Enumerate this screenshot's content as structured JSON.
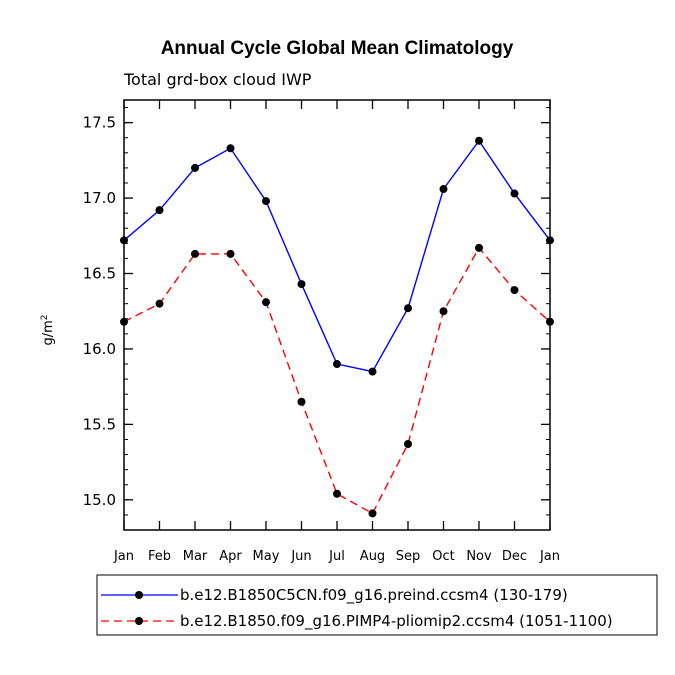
{
  "chart_data": {
    "type": "line",
    "title": "Annual Cycle Global Mean Climatology",
    "subtitle": "Total grd-box cloud IWP",
    "xlabel": "",
    "ylabel": "g/m",
    "ylabel_superscript": "2",
    "categories": [
      "Jan",
      "Feb",
      "Mar",
      "Apr",
      "May",
      "Jun",
      "Jul",
      "Aug",
      "Sep",
      "Oct",
      "Nov",
      "Dec",
      "Jan"
    ],
    "ylim": [
      14.8,
      17.65
    ],
    "yticks": [
      15.0,
      15.5,
      16.0,
      16.5,
      17.0,
      17.5
    ],
    "ytick_labels": [
      "15.0",
      "15.5",
      "16.0",
      "16.5",
      "17.0",
      "17.5"
    ],
    "series": [
      {
        "name": "b.e12.B1850C5CN.f09_g16.preind.ccsm4 (130-179)",
        "color": "#0000ff",
        "dash": "solid",
        "values": [
          16.72,
          16.92,
          17.2,
          17.33,
          16.98,
          16.43,
          15.9,
          15.85,
          16.27,
          17.06,
          17.38,
          17.03,
          16.72
        ]
      },
      {
        "name": "b.e12.B1850.f09_g16.PIMP4-pliomip2.ccsm4 (1051-1100)",
        "color": "#ff0000",
        "dash": "dashed",
        "values": [
          16.18,
          16.3,
          16.63,
          16.63,
          16.31,
          15.65,
          15.04,
          14.91,
          15.37,
          16.25,
          16.67,
          16.39,
          16.18
        ]
      }
    ],
    "grid": false,
    "legend_position": "bottom"
  }
}
